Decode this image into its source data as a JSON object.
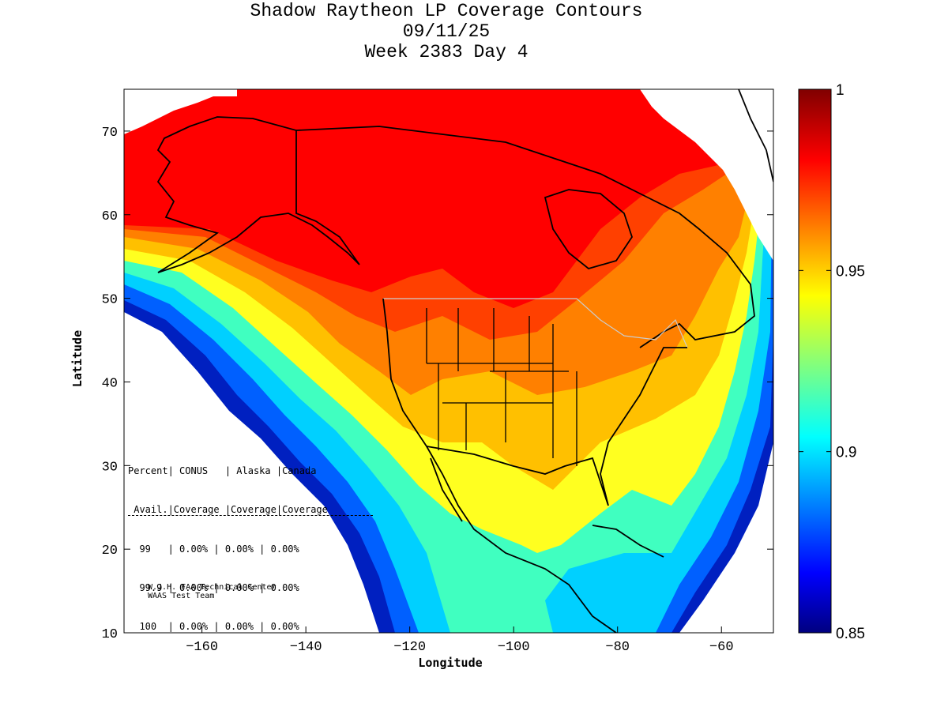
{
  "title": {
    "line1": "Shadow Raytheon LP Coverage Contours",
    "line2": "09/11/25",
    "line3": "Week 2383 Day 4"
  },
  "axes": {
    "xlabel": "Longitude",
    "ylabel": "Latitude",
    "xlim": [
      -175,
      -50
    ],
    "ylim": [
      10,
      75
    ],
    "xticks": [
      -160,
      -140,
      -120,
      -100,
      -80,
      -60
    ],
    "yticks": [
      10,
      20,
      30,
      40,
      50,
      60,
      70
    ]
  },
  "colorbar": {
    "range": [
      0.85,
      1.0
    ],
    "ticks": [
      "1",
      "0.95",
      "0.9",
      "0.85"
    ],
    "colormap": "jet"
  },
  "table": {
    "header1": "Percent| CONUS   | Alaska |Canada",
    "header2": " Avail.|Coverage |Coverage|Coverage",
    "rows": [
      "  99   | 0.00% | 0.00% | 0.00%",
      "  99.9 | 0.00% | 0.00% | 0.00%",
      "  100  | 0.00% | 0.00% | 0.00%"
    ]
  },
  "credit": {
    "line1": "W.J.H. FAA Technical Center",
    "line2": "WAAS Test Team"
  },
  "colors": {
    "dark_red": "#800000",
    "red": "#ff0000",
    "orange": "#ff8000",
    "yellow": "#ffff00",
    "cyan": "#00ffff",
    "blue": "#0000ff",
    "dark_blue": "#000080"
  }
}
